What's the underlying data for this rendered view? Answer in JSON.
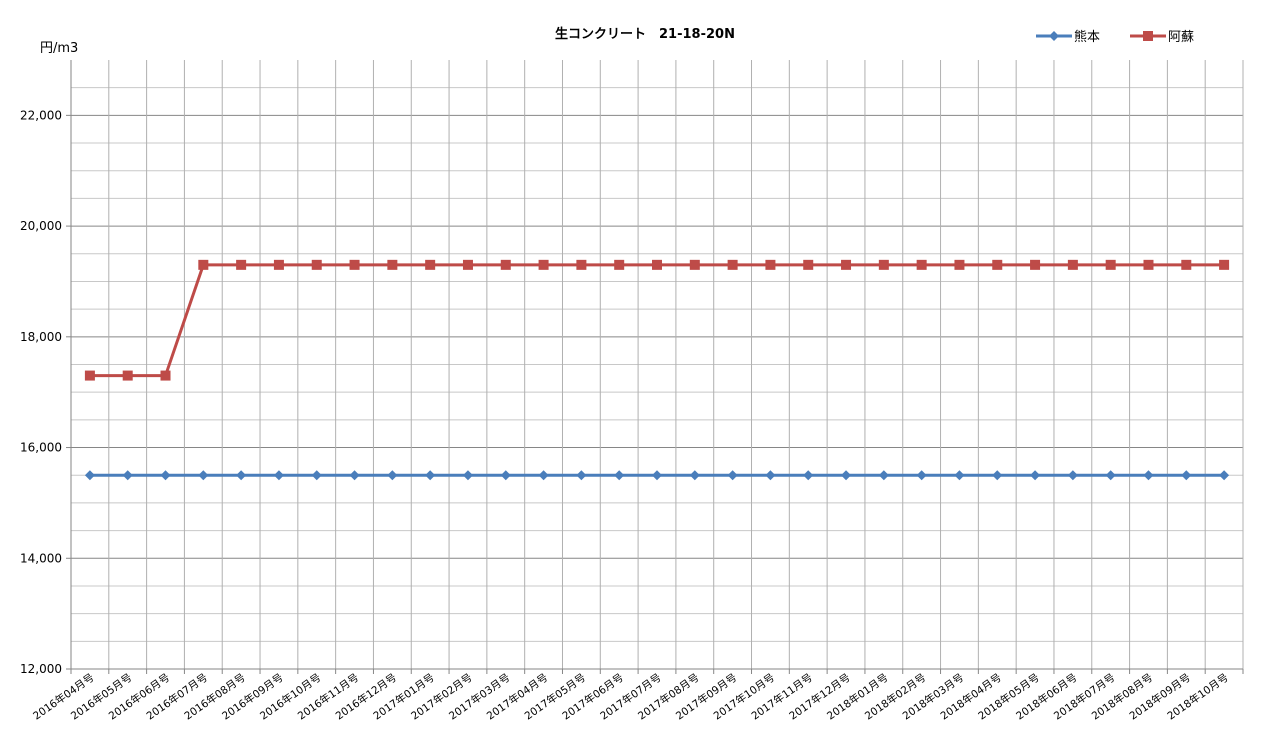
{
  "chart_data": {
    "type": "line",
    "title": "生コンクリート　21-18-20N",
    "ylabel": "円/m3",
    "xlabel": "",
    "ylim": [
      12000,
      23000
    ],
    "yticks": [
      12000,
      14000,
      16000,
      18000,
      20000,
      22000
    ],
    "ytick_labels": [
      "12,000",
      "14,000",
      "16,000",
      "18,000",
      "20,000",
      "22,000"
    ],
    "grid": true,
    "legend_position": "top-right",
    "categories": [
      "2016年04月号",
      "2016年05月号",
      "2016年06月号",
      "2016年07月号",
      "2016年08月号",
      "2016年09月号",
      "2016年10月号",
      "2016年11月号",
      "2016年12月号",
      "2017年01月号",
      "2017年02月号",
      "2017年03月号",
      "2017年04月号",
      "2017年05月号",
      "2017年06月号",
      "2017年07月号",
      "2017年08月号",
      "2017年09月号",
      "2017年10月号",
      "2017年11月号",
      "2017年12月号",
      "2018年01月号",
      "2018年02月号",
      "2018年03月号",
      "2018年04月号",
      "2018年05月号",
      "2018年06月号",
      "2018年07月号",
      "2018年08月号",
      "2018年09月号",
      "2018年10月号"
    ],
    "series": [
      {
        "name": "熊本",
        "color": "#4a7ebb",
        "marker": "diamond",
        "values": [
          15500,
          15500,
          15500,
          15500,
          15500,
          15500,
          15500,
          15500,
          15500,
          15500,
          15500,
          15500,
          15500,
          15500,
          15500,
          15500,
          15500,
          15500,
          15500,
          15500,
          15500,
          15500,
          15500,
          15500,
          15500,
          15500,
          15500,
          15500,
          15500,
          15500,
          15500
        ]
      },
      {
        "name": "阿蘇",
        "color": "#be4b48",
        "marker": "square",
        "values": [
          17300,
          17300,
          17300,
          19300,
          19300,
          19300,
          19300,
          19300,
          19300,
          19300,
          19300,
          19300,
          19300,
          19300,
          19300,
          19300,
          19300,
          19300,
          19300,
          19300,
          19300,
          19300,
          19300,
          19300,
          19300,
          19300,
          19300,
          19300,
          19300,
          19300,
          19300
        ]
      }
    ]
  }
}
